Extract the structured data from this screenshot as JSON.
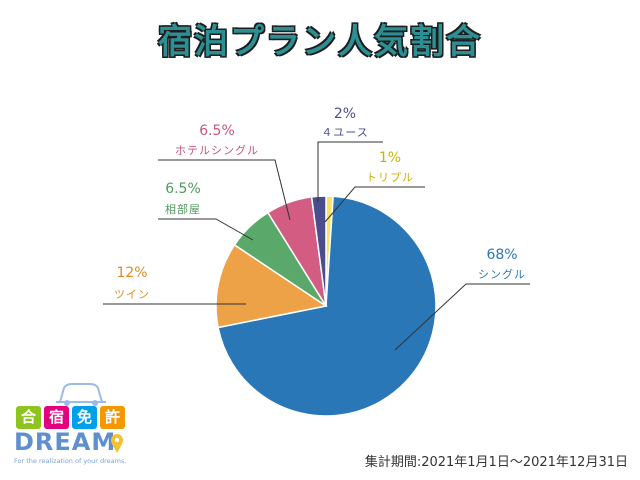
{
  "title": "宿泊プラン人気割合",
  "period": "集計期間:2021年1月1日〜2021年12月31日",
  "logo": {
    "chars": [
      "合",
      "宿",
      "免",
      "許"
    ],
    "word": "DREAM",
    "tagline": "For the realization of your dreams."
  },
  "colors": {
    "title": "#2b8f93",
    "chars_bg": [
      "#8fc31f",
      "#e4007f",
      "#00a0e9",
      "#f39800"
    ]
  },
  "chart_data": {
    "type": "pie",
    "start": "12 o'clock",
    "direction": "clockwise",
    "slices": [
      {
        "label": "トリプル",
        "percent_label": "1%",
        "value": 1,
        "color": "#f5e46a",
        "text_color": "#c8b400"
      },
      {
        "label": "シングル",
        "percent_label": "68%",
        "value": 68,
        "color": "#2a77b7",
        "text_color": "#2a77b7"
      },
      {
        "label": "ツイン",
        "percent_label": "12%",
        "value": 12,
        "color": "#eea248",
        "text_color": "#e08a25"
      },
      {
        "label": "相部屋",
        "percent_label": "6.5%",
        "value": 6.5,
        "color": "#5aa96a",
        "text_color": "#4f9a5f"
      },
      {
        "label": "ホテルシングル",
        "percent_label": "6.5%",
        "value": 6.5,
        "color": "#d35c83",
        "text_color": "#c9557c"
      },
      {
        "label": "４ユース",
        "percent_label": "2%",
        "value": 2,
        "color": "#4a4e8c",
        "text_color": "#4a4e8c"
      }
    ]
  }
}
